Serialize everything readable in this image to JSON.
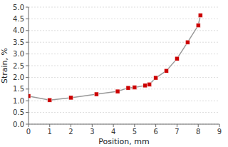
{
  "chart_data": {
    "type": "line",
    "xlabel": "Position, mm",
    "ylabel": "Strain, %",
    "x": [
      0,
      1.0,
      2.0,
      3.2,
      4.2,
      4.7,
      5.0,
      5.5,
      5.7,
      6.0,
      6.5,
      7.0,
      7.5,
      8.0,
      8.1
    ],
    "values": [
      1.2,
      1.03,
      1.13,
      1.28,
      1.4,
      1.55,
      1.57,
      1.65,
      1.7,
      1.98,
      2.28,
      2.8,
      3.5,
      4.22,
      4.65
    ],
    "color": "#cc0000",
    "marker": "square",
    "xlim": [
      0,
      9
    ],
    "ylim": [
      0,
      5
    ],
    "xticks": [
      0,
      1,
      2,
      3,
      4,
      5,
      6,
      7,
      8,
      9
    ],
    "yticks": [
      {
        "value": 0,
        "label": "0.0"
      },
      0.5,
      {
        "value": 1,
        "label": "1.0"
      },
      1.5,
      {
        "value": 2,
        "label": "2.0"
      },
      2.5,
      {
        "value": 3,
        "label": "3.0"
      },
      3.5,
      {
        "value": 4,
        "label": "4.0"
      },
      4.5,
      {
        "value": 5,
        "label": "5.0"
      }
    ],
    "grid": true
  }
}
